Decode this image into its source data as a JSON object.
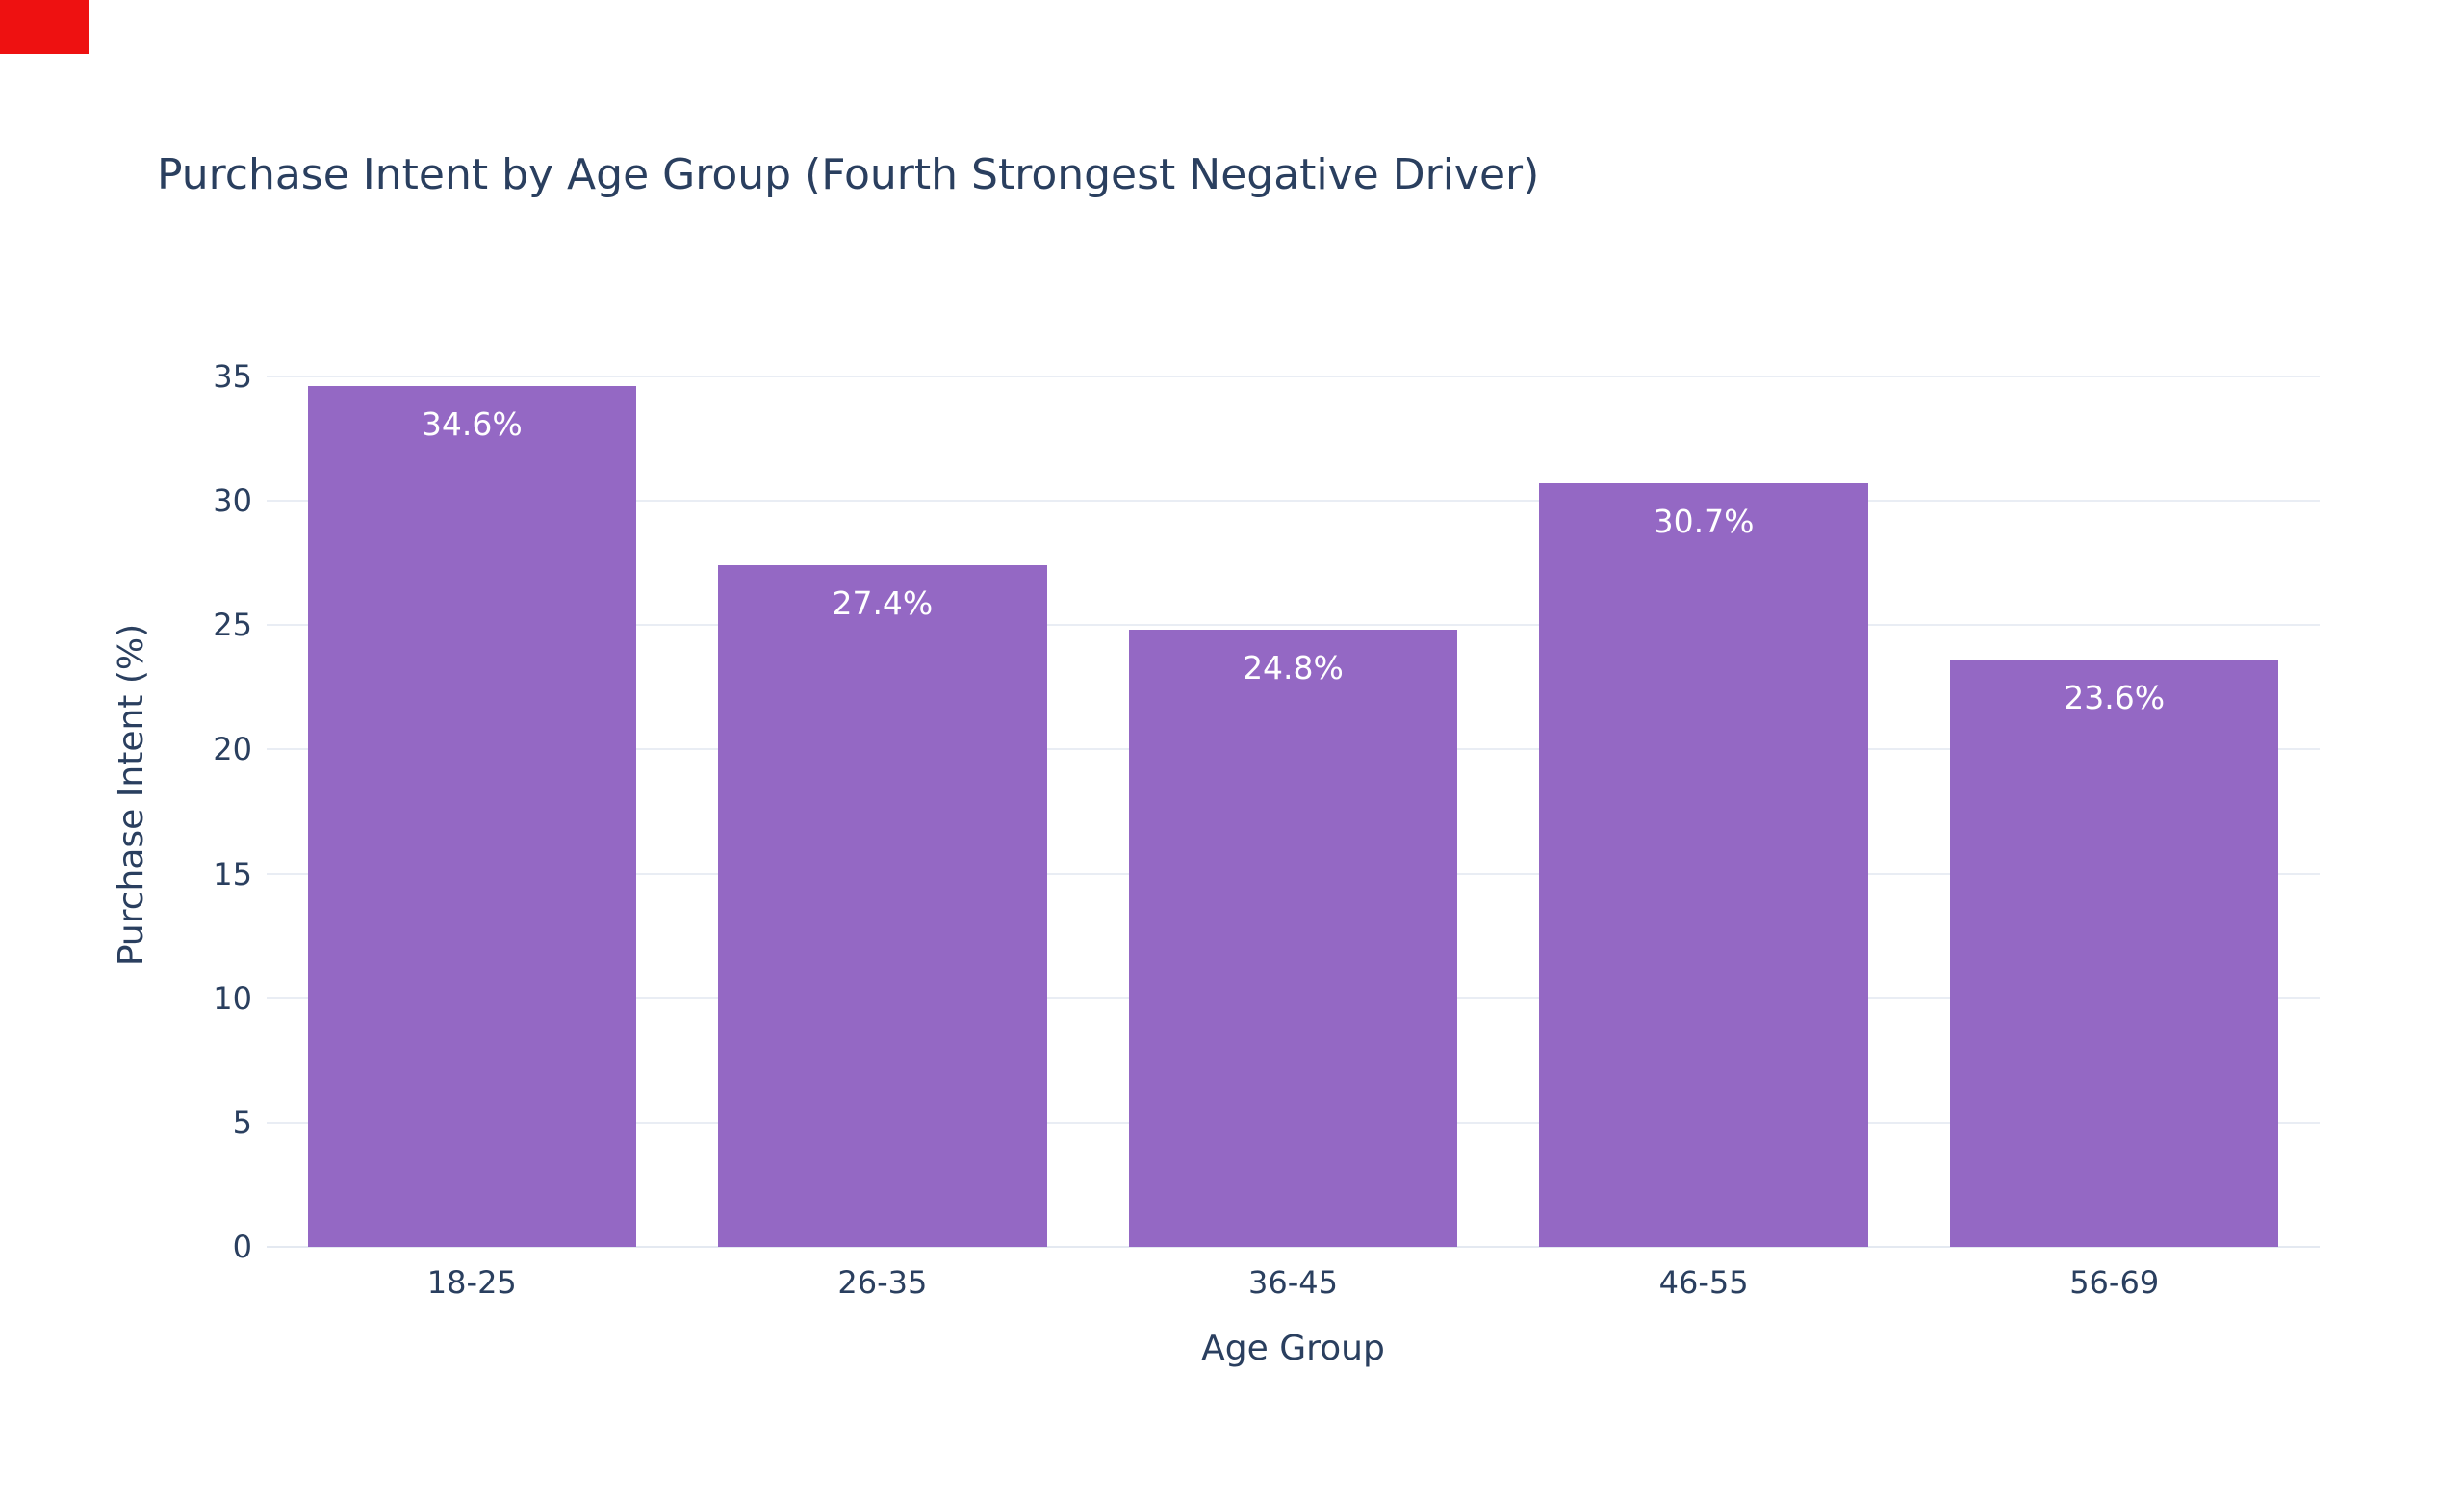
{
  "marker": {
    "color": "#ee1111"
  },
  "chart_data": {
    "type": "bar",
    "title": "Purchase Intent by Age Group (Fourth Strongest Negative Driver)",
    "categories": [
      "18-25",
      "26-35",
      "36-45",
      "46-55",
      "56-69"
    ],
    "values": [
      34.6,
      27.4,
      24.8,
      30.7,
      23.6
    ],
    "bar_labels": [
      "34.6%",
      "27.4%",
      "24.8%",
      "30.7%",
      "23.6%"
    ],
    "xlabel": "Age Group",
    "ylabel": "Purchase Intent (%)",
    "ylim": [
      0,
      35
    ],
    "yticks": [
      0,
      5,
      10,
      15,
      20,
      25,
      30,
      35
    ],
    "grid": true,
    "legend": "none",
    "bar_color": "#9468c4",
    "label_color": "#ffffff",
    "text_color": "#2a3f5f",
    "grid_color": "#e9edf4",
    "zeroline_color": "#e4e9f1",
    "background": "#ffffff"
  }
}
